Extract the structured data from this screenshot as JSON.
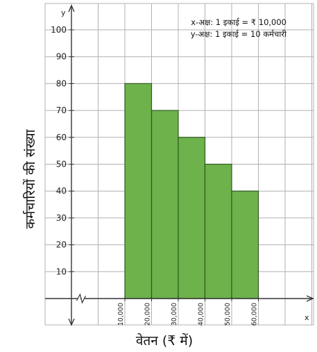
{
  "chart_data": {
    "type": "bar",
    "categories": [
      "10,000",
      "20,000",
      "30,000",
      "40,000",
      "50,000",
      "60,000"
    ],
    "bins": [
      {
        "from": 10000,
        "to": 20000,
        "value": 80
      },
      {
        "from": 20000,
        "to": 30000,
        "value": 70
      },
      {
        "from": 30000,
        "to": 40000,
        "value": 60
      },
      {
        "from": 40000,
        "to": 50000,
        "value": 50
      },
      {
        "from": 50000,
        "to": 60000,
        "value": 40
      }
    ],
    "x_tick_values": [
      10000,
      20000,
      30000,
      40000,
      50000,
      60000
    ],
    "x_tick_labels": [
      "10,000",
      "20,000",
      "30,000",
      "40,000",
      "50,000",
      "60,000"
    ],
    "y_tick_values": [
      10,
      20,
      30,
      40,
      50,
      60,
      70,
      80,
      90,
      100
    ],
    "y_tick_labels": [
      "10",
      "20",
      "30",
      "40",
      "50",
      "60",
      "70",
      "80",
      "90",
      "100"
    ],
    "xlabel": "वेतन (₹ में)",
    "ylabel": "कर्मचारियों की संख्या",
    "x_axis_letter": "x",
    "y_axis_letter": "y",
    "annotations": [
      "x-अक्ष: 1 इकाई = ₹ 10,000",
      "y-अक्ष: 1 इकाई = 10 कर्मचारी"
    ],
    "ylim": [
      0,
      100
    ],
    "xlim": [
      0,
      90000
    ],
    "x_axis_break": true,
    "grid": true,
    "bar_color": "#6db24b",
    "bar_edge_color": "#2e5a1f",
    "grid_color": "#b0b0b0",
    "axis_color": "#333333"
  }
}
